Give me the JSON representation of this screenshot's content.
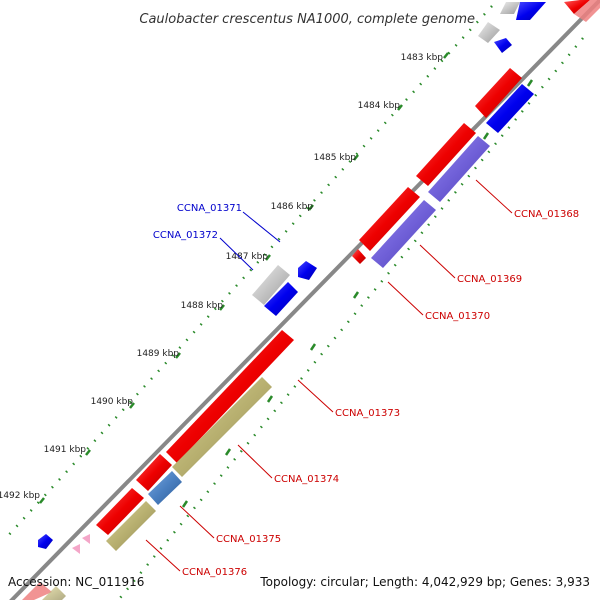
{
  "title": "Caulobacter crescentus NA1000, complete genome",
  "accession": "Accession: NC_011916",
  "topology": "Topology: circular; Length: 4,042,929 bp; Genes: 3,933",
  "kbp_ticks": [
    "1483 kbp",
    "1484 kbp",
    "1485 kbp",
    "1486 kbp",
    "1487 kbp",
    "1488 kbp",
    "1489 kbp",
    "1490 kbp",
    "1491 kbp",
    "1492 kbp"
  ],
  "gene_labels": {
    "outer": [
      "CCNA_01371",
      "CCNA_01372"
    ],
    "inner": [
      "CCNA_01368",
      "CCNA_01369",
      "CCNA_01370",
      "CCNA_01373",
      "CCNA_01374",
      "CCNA_01375",
      "CCNA_01376"
    ]
  },
  "colors": {
    "cds": "#ee0000",
    "gene_blue": "#0000ee",
    "gene_grey": "#bbbbbb",
    "purple": "#7060d8",
    "olive": "#b8b070",
    "steel_blue": "#4a7fc0",
    "pink": "#f4a6c8",
    "backbone": "#888888",
    "tick_green": "#2a8a2a",
    "label_red": "#cc0000",
    "label_blue": "#0000cc"
  }
}
